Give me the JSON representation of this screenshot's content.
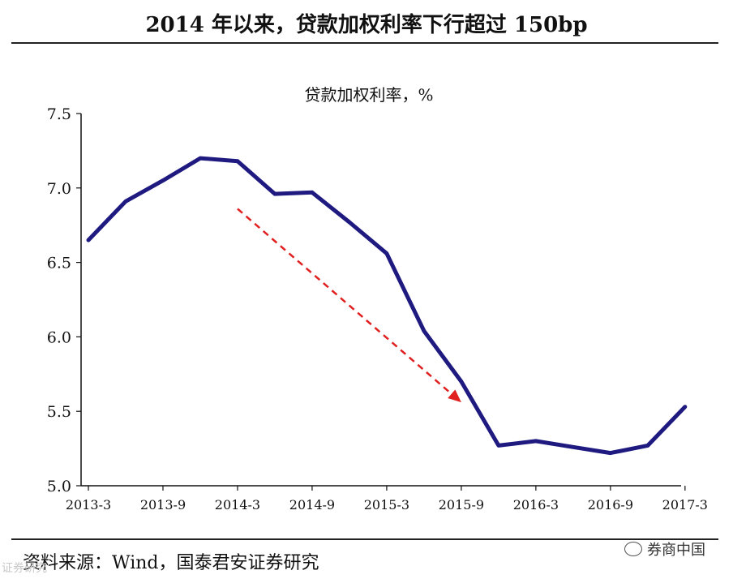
{
  "header": {
    "title": "2014 年以来，贷款加权利率下行超过 150bp"
  },
  "chart_data": {
    "type": "line",
    "title": "贷款加权利率，%",
    "xlabel": "",
    "ylabel": "",
    "ylim": [
      5.0,
      7.5
    ],
    "yticks": [
      "5.0",
      "5.5",
      "6.0",
      "6.5",
      "7.0",
      "7.5"
    ],
    "xtick_labels": [
      "2013-3",
      "2013-9",
      "2014-3",
      "2014-9",
      "2015-3",
      "2015-9",
      "2016-3",
      "2016-9",
      "2017-3"
    ],
    "series": [
      {
        "name": "贷款加权利率",
        "color": "#1f1a80",
        "points": [
          {
            "x": "2013-3",
            "y": 6.65
          },
          {
            "x": "2013-6",
            "y": 6.91
          },
          {
            "x": "2013-9",
            "y": 7.05
          },
          {
            "x": "2013-12",
            "y": 7.2
          },
          {
            "x": "2014-3",
            "y": 7.18
          },
          {
            "x": "2014-6",
            "y": 6.96
          },
          {
            "x": "2014-9",
            "y": 6.97
          },
          {
            "x": "2014-12",
            "y": 6.77
          },
          {
            "x": "2015-3",
            "y": 6.56
          },
          {
            "x": "2015-6",
            "y": 6.04
          },
          {
            "x": "2015-9",
            "y": 5.7
          },
          {
            "x": "2015-12",
            "y": 5.27
          },
          {
            "x": "2016-3",
            "y": 5.3
          },
          {
            "x": "2016-6",
            "y": 5.26
          },
          {
            "x": "2016-9",
            "y": 5.22
          },
          {
            "x": "2016-12",
            "y": 5.27
          },
          {
            "x": "2017-3",
            "y": 5.53
          }
        ]
      }
    ],
    "annotations": [
      {
        "type": "dashed-arrow",
        "color": "#e02020",
        "from": {
          "x": "2014-3",
          "y": 6.86
        },
        "to": {
          "x": "2015-9",
          "y": 5.56
        }
      }
    ]
  },
  "source": "资料来源：Wind，国泰君安证券研究",
  "watermark_right": "券商中国",
  "watermark_left": "证券研究"
}
